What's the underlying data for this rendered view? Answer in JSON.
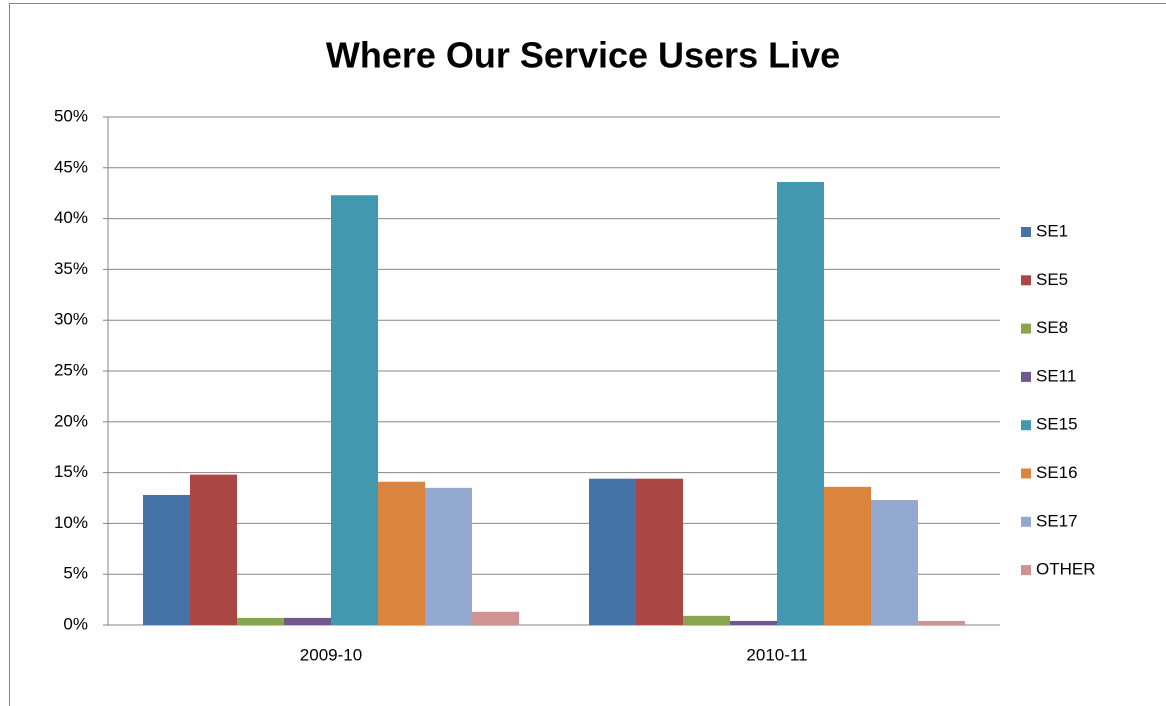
{
  "chart_data": {
    "type": "bar",
    "title": "Where Our Service Users Live",
    "categories": [
      "2009-10",
      "2010-11"
    ],
    "series": [
      {
        "name": "SE1",
        "color": "#4572a7",
        "values": [
          12.8,
          14.4
        ]
      },
      {
        "name": "SE5",
        "color": "#aa4643",
        "values": [
          14.8,
          14.4
        ]
      },
      {
        "name": "SE8",
        "color": "#89a54e",
        "values": [
          0.7,
          0.9
        ]
      },
      {
        "name": "SE11",
        "color": "#71588f",
        "values": [
          0.7,
          0.4
        ]
      },
      {
        "name": "SE15",
        "color": "#4198af",
        "values": [
          42.3,
          43.6
        ]
      },
      {
        "name": "SE16",
        "color": "#db843d",
        "values": [
          14.1,
          13.6
        ]
      },
      {
        "name": "SE17",
        "color": "#93a9cf",
        "values": [
          13.5,
          12.3
        ]
      },
      {
        "name": "OTHER",
        "color": "#d19392",
        "values": [
          1.3,
          0.4
        ]
      }
    ],
    "ylim": [
      0,
      50
    ],
    "yticks": [
      {
        "value": 0,
        "label": "0%"
      },
      {
        "value": 5,
        "label": "5%"
      },
      {
        "value": 10,
        "label": "10%"
      },
      {
        "value": 15,
        "label": "15%"
      },
      {
        "value": 20,
        "label": "20%"
      },
      {
        "value": 25,
        "label": "25%"
      },
      {
        "value": 30,
        "label": "30%"
      },
      {
        "value": 35,
        "label": "35%"
      },
      {
        "value": 40,
        "label": "40%"
      },
      {
        "value": 45,
        "label": "45%"
      },
      {
        "value": 50,
        "label": "50%"
      }
    ],
    "grid": true,
    "legend": "right"
  }
}
